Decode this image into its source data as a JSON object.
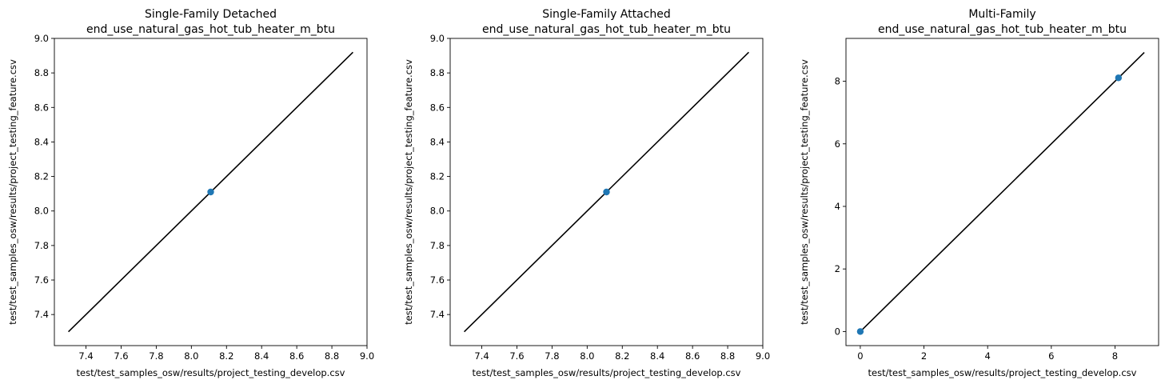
{
  "colors": {
    "marker": "#1f77b4",
    "line": "#000000"
  },
  "chart_data": [
    {
      "type": "scatter",
      "title": "Single-Family Detached",
      "subtitle": "end_use_natural_gas_hot_tub_heater_m_btu",
      "xlabel": "test/test_samples_osw/results/project_testing_develop.csv",
      "ylabel": "test/test_samples_osw/results/project_testing_feature.csv",
      "xlim": [
        7.22,
        9.0
      ],
      "ylim": [
        7.22,
        9.0
      ],
      "xticks": [
        7.4,
        7.6,
        7.8,
        8.0,
        8.2,
        8.4,
        8.6,
        8.8,
        9.0
      ],
      "yticks": [
        7.4,
        7.6,
        7.8,
        8.0,
        8.2,
        8.4,
        8.6,
        8.8,
        9.0
      ],
      "xtick_labels": [
        "7.4",
        "7.6",
        "7.8",
        "8.0",
        "8.2",
        "8.4",
        "8.6",
        "8.8",
        "9.0"
      ],
      "ytick_labels": [
        "7.4",
        "7.6",
        "7.8",
        "8.0",
        "8.2",
        "8.4",
        "8.6",
        "8.8",
        "9.0"
      ],
      "points": [
        {
          "x": 8.11,
          "y": 8.11
        }
      ],
      "reference_line": [
        [
          7.3,
          7.3
        ],
        [
          8.92,
          8.92
        ]
      ],
      "grid": false,
      "legend": "none"
    },
    {
      "type": "scatter",
      "title": "Single-Family Attached",
      "subtitle": "end_use_natural_gas_hot_tub_heater_m_btu",
      "xlabel": "test/test_samples_osw/results/project_testing_develop.csv",
      "ylabel": "test/test_samples_osw/results/project_testing_feature.csv",
      "xlim": [
        7.22,
        9.0
      ],
      "ylim": [
        7.22,
        9.0
      ],
      "xticks": [
        7.4,
        7.6,
        7.8,
        8.0,
        8.2,
        8.4,
        8.6,
        8.8,
        9.0
      ],
      "yticks": [
        7.4,
        7.6,
        7.8,
        8.0,
        8.2,
        8.4,
        8.6,
        8.8,
        9.0
      ],
      "xtick_labels": [
        "7.4",
        "7.6",
        "7.8",
        "8.0",
        "8.2",
        "8.4",
        "8.6",
        "8.8",
        "9.0"
      ],
      "ytick_labels": [
        "7.4",
        "7.6",
        "7.8",
        "8.0",
        "8.2",
        "8.4",
        "8.6",
        "8.8",
        "9.0"
      ],
      "points": [
        {
          "x": 8.11,
          "y": 8.11
        }
      ],
      "reference_line": [
        [
          7.3,
          7.3
        ],
        [
          8.92,
          8.92
        ]
      ],
      "grid": false,
      "legend": "none"
    },
    {
      "type": "scatter",
      "title": "Multi-Family",
      "subtitle": "end_use_natural_gas_hot_tub_heater_m_btu",
      "xlabel": "test/test_samples_osw/results/project_testing_develop.csv",
      "ylabel": "test/test_samples_osw/results/project_testing_feature.csv",
      "xlim": [
        -0.45,
        9.37
      ],
      "ylim": [
        -0.45,
        9.37
      ],
      "xticks": [
        0,
        2,
        4,
        6,
        8
      ],
      "yticks": [
        0,
        2,
        4,
        6,
        8
      ],
      "xtick_labels": [
        "0",
        "2",
        "4",
        "6",
        "8"
      ],
      "ytick_labels": [
        "0",
        "2",
        "4",
        "6",
        "8"
      ],
      "points": [
        {
          "x": 0,
          "y": 0
        },
        {
          "x": 8.11,
          "y": 8.11
        }
      ],
      "reference_line": [
        [
          0,
          0
        ],
        [
          8.92,
          8.92
        ]
      ],
      "grid": false,
      "legend": "none"
    }
  ]
}
